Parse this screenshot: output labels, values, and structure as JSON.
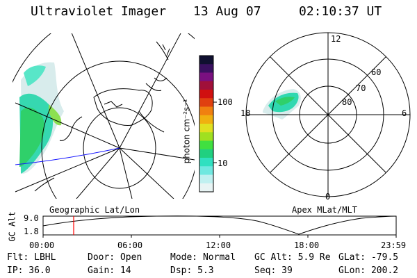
{
  "header": {
    "instrument": "Ultraviolet Imager",
    "date": "13 Aug 07",
    "time": "02:10:37 UT"
  },
  "left_panel": {
    "caption": "Geographic Lat/Lon"
  },
  "right_panel": {
    "caption": "Apex MLat/MLT",
    "mlat_labels": [
      "60",
      "70",
      "80"
    ],
    "mlt_labels": {
      "top": "12",
      "left": "18",
      "right": "6",
      "bottom": "0"
    }
  },
  "colorbar": {
    "unit_label": "photon cm⁻²s⁻¹",
    "ticks": [
      "100",
      "10"
    ],
    "colors": [
      "#101030",
      "#3a1060",
      "#7a1080",
      "#a0103a",
      "#d01010",
      "#e04010",
      "#f08010",
      "#f0b010",
      "#e0e020",
      "#a0e020",
      "#40e040",
      "#20d080",
      "#30e0c0",
      "#70e8e0",
      "#c0f0f0",
      "#e8f4f4"
    ]
  },
  "altitude_strip": {
    "axis_label": "GC Alt",
    "y_ticks": [
      "9.0",
      "1.8"
    ],
    "x_ticks": [
      "00:00",
      "06:00",
      "12:00",
      "18:00",
      "23:59"
    ],
    "marker_color": "#ff0000"
  },
  "status": {
    "rows": [
      [
        "Flt: LBHL",
        "Door: Open",
        "Mode: Normal",
        "GC Alt: 5.9 Re",
        "GLat: -79.5"
      ],
      [
        "IP: 36.0",
        "Gain: 14",
        "Dsp:   5.3",
        "Seq: 39",
        "GLon: 200.2"
      ]
    ]
  }
}
